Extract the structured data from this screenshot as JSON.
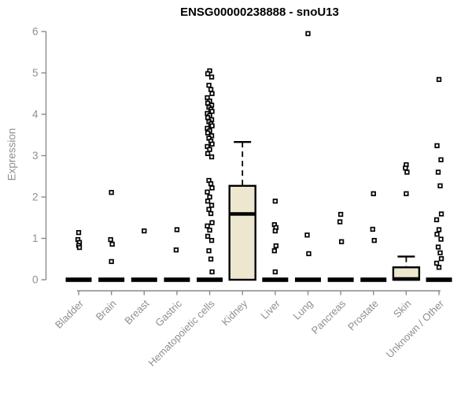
{
  "title": "ENSG00000238888 - snoU13",
  "ylabel": "Expression",
  "colors": {
    "axis": "#8a8a8a",
    "tick_label": "#8f8f8f",
    "box_fill": "#EDE7CF",
    "box_stroke": "#000000",
    "point": "#000000",
    "title": "#000000",
    "background": "#ffffff"
  },
  "chart_data": {
    "type": "boxplot",
    "title": "ENSG00000238888 - snoU13",
    "xlabel": "",
    "ylabel": "Expression",
    "ylim": [
      0,
      6
    ],
    "yticks": [
      0,
      1,
      2,
      3,
      4,
      5,
      6
    ],
    "grid": false,
    "legend": "none",
    "box_fill": "#EDE7CF",
    "categories": [
      "Bladder",
      "Brain",
      "Breast",
      "Gastric",
      "Hematopoietic cells",
      "Kidney",
      "Liver",
      "Lung",
      "Pancreas",
      "Prostate",
      "Skin",
      "Unknown / Other"
    ],
    "boxes": [
      {
        "q1": 0,
        "median": 0,
        "q3": 0,
        "lo": 0,
        "hi": 0
      },
      {
        "q1": 0,
        "median": 0,
        "q3": 0,
        "lo": 0,
        "hi": 0
      },
      {
        "q1": 0,
        "median": 0,
        "q3": 0,
        "lo": 0,
        "hi": 0
      },
      {
        "q1": 0,
        "median": 0,
        "q3": 0,
        "lo": 0,
        "hi": 0
      },
      {
        "q1": 0,
        "median": 0,
        "q3": 0,
        "lo": 0,
        "hi": 0
      },
      {
        "q1": 0,
        "median": 1.59,
        "q3": 2.27,
        "lo": 0,
        "hi": 3.33
      },
      {
        "q1": 0,
        "median": 0,
        "q3": 0,
        "lo": 0,
        "hi": 0
      },
      {
        "q1": 0,
        "median": 0,
        "q3": 0,
        "lo": 0,
        "hi": 0
      },
      {
        "q1": 0,
        "median": 0,
        "q3": 0,
        "lo": 0,
        "hi": 0
      },
      {
        "q1": 0,
        "median": 0,
        "q3": 0,
        "lo": 0,
        "hi": 0
      },
      {
        "q1": 0,
        "median": 0.02,
        "q3": 0.3,
        "lo": 0,
        "hi": 0.56
      },
      {
        "q1": 0,
        "median": 0,
        "q3": 0,
        "lo": 0,
        "hi": 0
      }
    ],
    "points": [
      [
        1.14,
        0.97,
        0.9,
        0.83,
        0.78
      ],
      [
        2.11,
        0.97,
        0.86,
        0.44
      ],
      [
        1.18
      ],
      [
        1.21,
        0.72
      ],
      [
        5.05,
        4.98,
        4.9,
        4.7,
        4.6,
        4.5,
        4.4,
        4.32,
        4.27,
        4.22,
        4.17,
        4.12,
        4.07,
        4.02,
        3.97,
        3.92,
        3.87,
        3.82,
        3.77,
        3.72,
        3.66,
        3.6,
        3.55,
        3.48,
        3.42,
        3.35,
        3.28,
        3.22,
        3.15,
        3.05,
        2.97,
        2.4,
        2.32,
        2.22,
        2.12,
        2.0,
        1.9,
        1.8,
        1.7,
        1.6,
        1.38,
        1.3,
        1.2,
        1.05,
        0.95,
        0.7,
        0.5,
        0.19
      ],
      [],
      [
        1.9,
        1.33,
        1.26,
        1.18,
        0.82,
        0.7,
        0.19
      ],
      [
        5.95,
        1.08,
        0.63
      ],
      [
        1.58,
        1.4,
        0.92
      ],
      [
        2.08,
        1.22,
        0.95
      ],
      [
        2.78,
        2.7,
        2.6,
        2.08
      ],
      [
        4.84,
        3.24,
        2.9,
        2.6,
        2.27,
        1.59,
        1.45,
        1.21,
        1.1,
        0.98,
        0.79,
        0.65,
        0.51,
        0.4,
        0.3
      ]
    ]
  }
}
